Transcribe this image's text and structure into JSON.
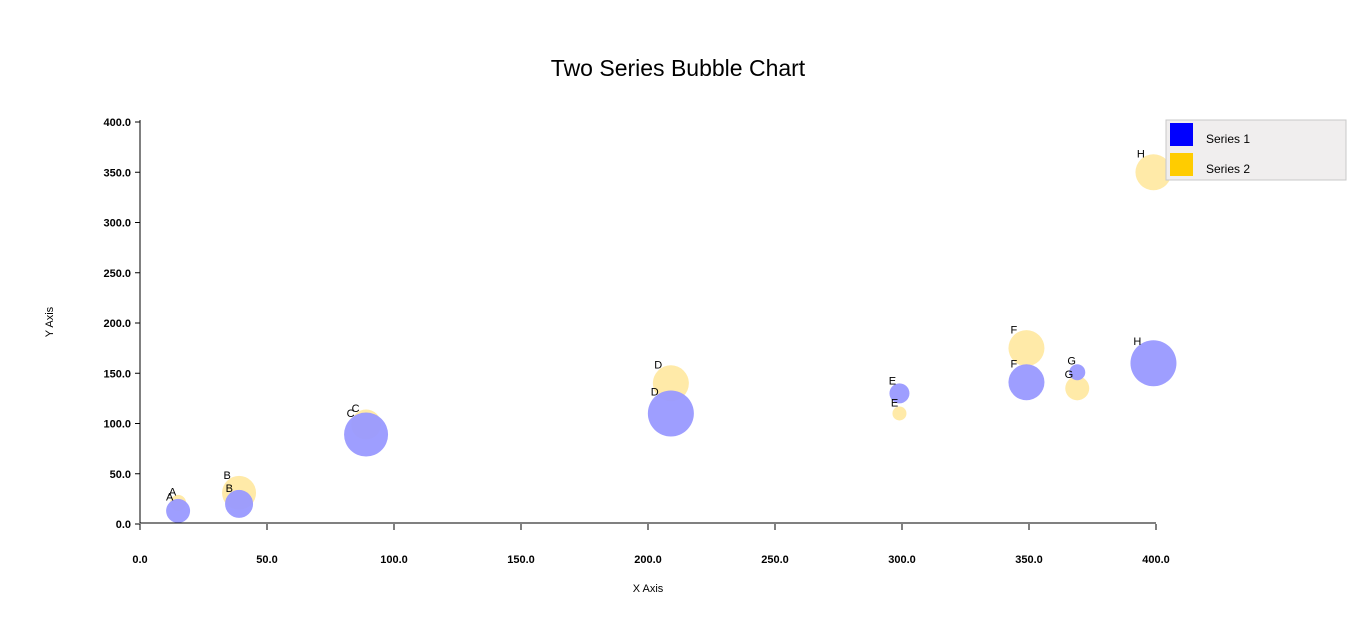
{
  "chart_data": {
    "type": "scatter",
    "subtype": "bubble",
    "title": "Two Series Bubble Chart",
    "xlabel": "X Axis",
    "ylabel": "Y Axis",
    "xlim": [
      0,
      400
    ],
    "ylim": [
      0,
      400
    ],
    "x_ticks": [
      "0.0",
      "50.0",
      "100.0",
      "150.0",
      "200.0",
      "250.0",
      "300.0",
      "350.0",
      "400.0"
    ],
    "y_ticks": [
      "0.0",
      "50.0",
      "100.0",
      "150.0",
      "200.0",
      "250.0",
      "300.0",
      "350.0",
      "400.0"
    ],
    "grid": false,
    "legend_position": "top-right",
    "series": [
      {
        "name": "Series 1",
        "color": "#0000ff",
        "bubble_color": "#9999ff",
        "points": [
          {
            "label": "A",
            "x": 15,
            "y": 13,
            "size": 12
          },
          {
            "label": "B",
            "x": 39,
            "y": 20,
            "size": 14
          },
          {
            "label": "C",
            "x": 89,
            "y": 89,
            "size": 22
          },
          {
            "label": "D",
            "x": 209,
            "y": 110,
            "size": 23
          },
          {
            "label": "E",
            "x": 299,
            "y": 130,
            "size": 10
          },
          {
            "label": "F",
            "x": 349,
            "y": 141,
            "size": 18
          },
          {
            "label": "G",
            "x": 369,
            "y": 151,
            "size": 8
          },
          {
            "label": "H",
            "x": 399,
            "y": 160,
            "size": 23
          }
        ]
      },
      {
        "name": "Series 2",
        "color": "#ffcc00",
        "bubble_color": "#ffe699",
        "points": [
          {
            "label": "A",
            "x": 15,
            "y": 21,
            "size": 8
          },
          {
            "label": "B",
            "x": 39,
            "y": 31,
            "size": 17
          },
          {
            "label": "C",
            "x": 89,
            "y": 99,
            "size": 15
          },
          {
            "label": "D",
            "x": 209,
            "y": 140,
            "size": 18
          },
          {
            "label": "E",
            "x": 299,
            "y": 110,
            "size": 7
          },
          {
            "label": "F",
            "x": 349,
            "y": 175,
            "size": 18
          },
          {
            "label": "G",
            "x": 369,
            "y": 135,
            "size": 12
          },
          {
            "label": "H",
            "x": 399,
            "y": 350,
            "size": 18
          }
        ]
      }
    ]
  }
}
